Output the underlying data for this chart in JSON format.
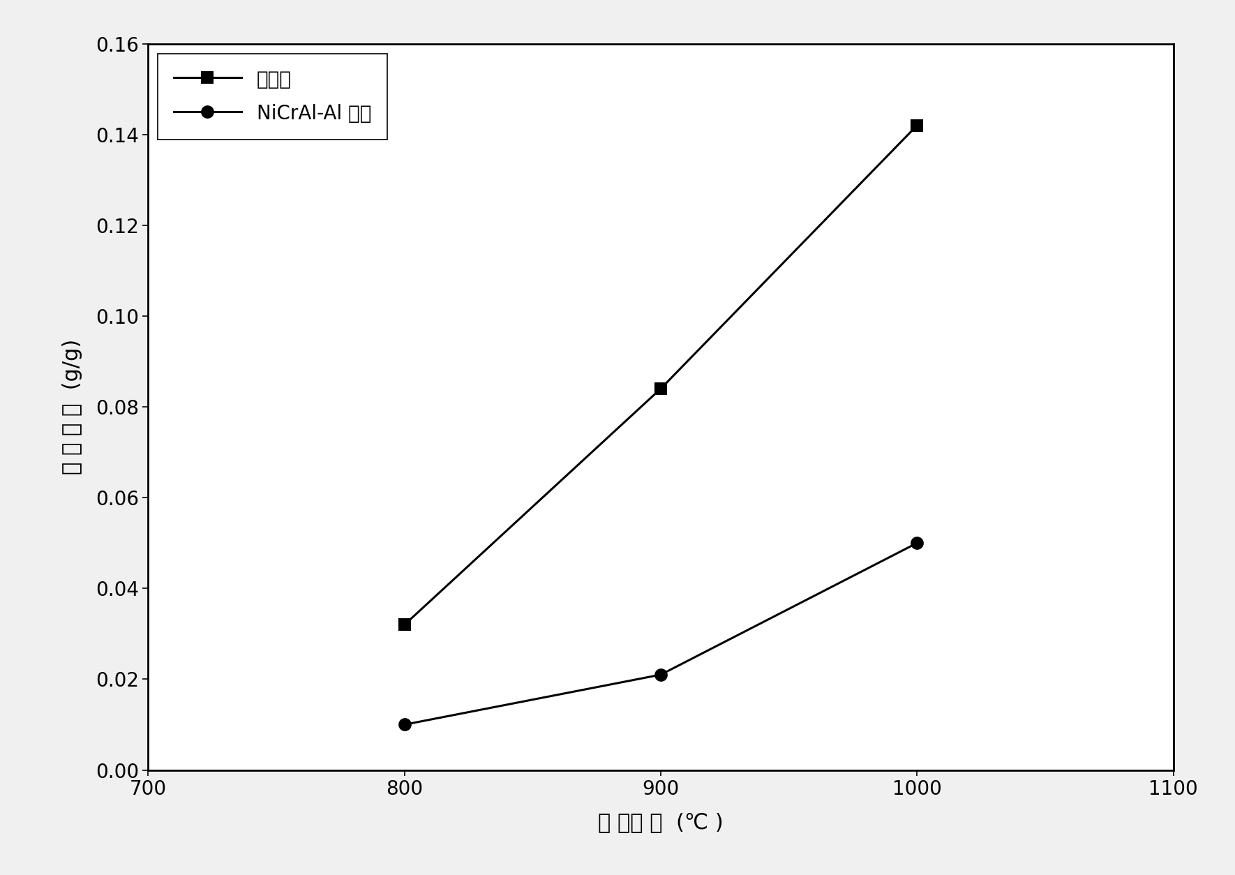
{
  "series1_label": "泡沫镖",
  "series2_label": "NiCrAl-Al 涂层",
  "x_values": [
    800,
    900,
    1000
  ],
  "series1_y": [
    0.032,
    0.084,
    0.142
  ],
  "series2_y": [
    0.01,
    0.021,
    0.05
  ],
  "xlabel": "氧 化温 度  (℃ )",
  "ylabel": "氧 化 增 重  (g/g)",
  "xlim": [
    700,
    1100
  ],
  "ylim": [
    0.0,
    0.16
  ],
  "xticks": [
    700,
    800,
    900,
    1000,
    1100
  ],
  "yticks": [
    0.0,
    0.02,
    0.04,
    0.06,
    0.08,
    0.1,
    0.12,
    0.14,
    0.16
  ],
  "line_color": "#000000",
  "marker1": "s",
  "marker2": "o",
  "markersize": 12,
  "linewidth": 2.2,
  "background_color": "#f0f0f0",
  "label_fontsize": 22,
  "tick_fontsize": 20,
  "legend_fontsize": 20
}
